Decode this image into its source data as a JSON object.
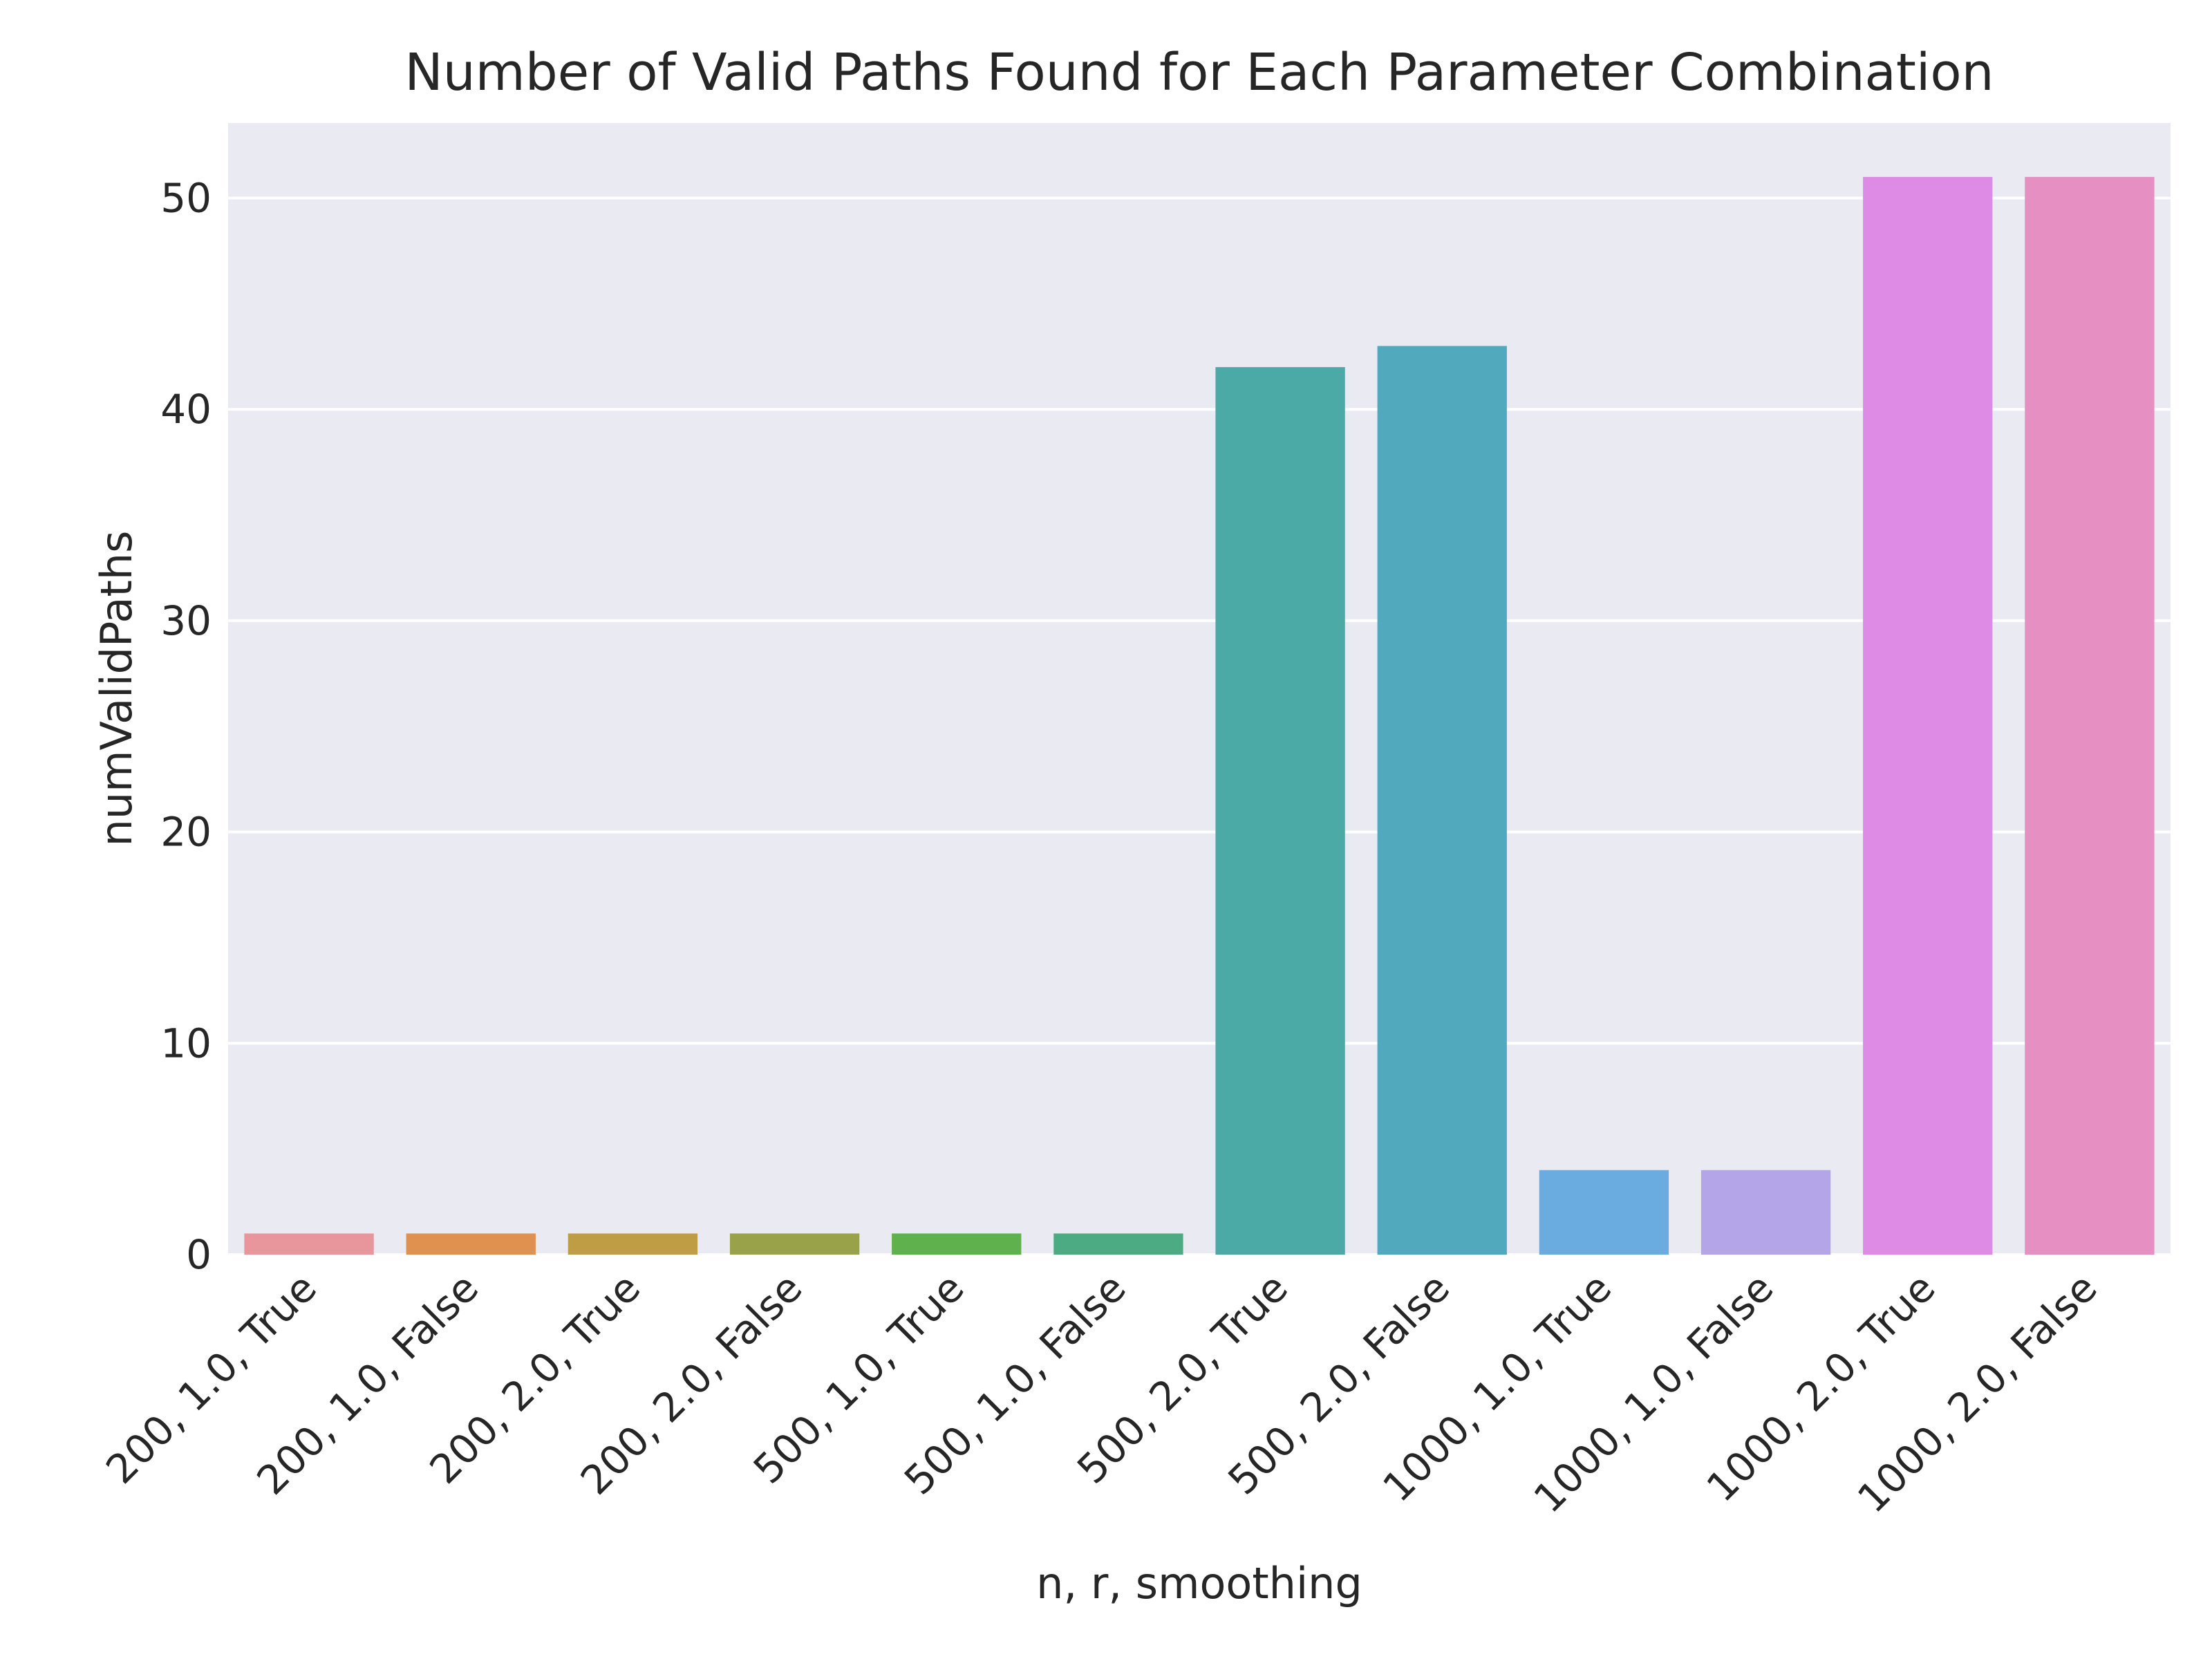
{
  "chart_data": {
    "type": "bar",
    "title": "Number of Valid Paths Found for Each Parameter Combination",
    "xlabel": "n, r, smoothing",
    "ylabel": "numValidPaths",
    "categories": [
      "200, 1.0, True",
      "200, 1.0, False",
      "200, 2.0, True",
      "200, 2.0, False",
      "500, 1.0, True",
      "500, 1.0, False",
      "500, 2.0, True",
      "500, 2.0, False",
      "1000, 1.0, True",
      "1000, 1.0, False",
      "1000, 2.0, True",
      "1000, 2.0, False"
    ],
    "values": [
      1,
      1,
      1,
      1,
      1,
      1,
      42,
      43,
      4,
      4,
      51,
      51
    ],
    "colors": [
      "#e8959c",
      "#e0914f",
      "#bf9d45",
      "#9aa249",
      "#5eb14c",
      "#4dab84",
      "#4ba9a6",
      "#50a9bd",
      "#6aacdf",
      "#b3a5e8",
      "#dd8be5",
      "#e68fc2"
    ],
    "ylim": [
      0,
      53.55
    ],
    "yticks": [
      0,
      10,
      20,
      30,
      40,
      50
    ],
    "grid": true,
    "background": "#eaeaf2",
    "gridColor": "#ffffff"
  }
}
